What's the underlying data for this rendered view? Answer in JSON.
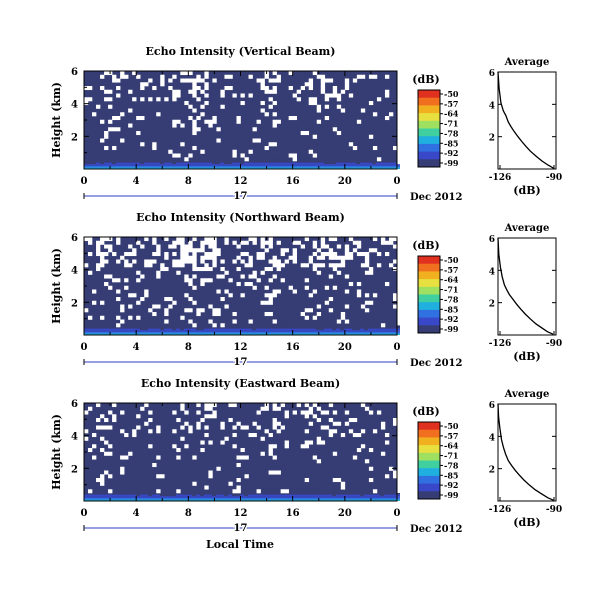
{
  "figure": {
    "x_title": "Local Time",
    "month_label": "Dec 2012",
    "day_label": "17",
    "unit_label": "(dB)",
    "average_title": "Average"
  },
  "chart_data": [
    {
      "type": "heatmap",
      "title": "Echo Intensity (Vertical Beam)",
      "xlabel": "",
      "ylabel": "Height (km)",
      "x_ticks": [
        "0",
        "4",
        "8",
        "12",
        "16",
        "20",
        "0"
      ],
      "xlim": [
        0,
        24
      ],
      "y_ticks": [
        "2",
        "4",
        "6"
      ],
      "ylim": [
        0,
        6
      ],
      "colorbar": {
        "label": "(dB)",
        "ticks": [
          "-50",
          "-57",
          "-64",
          "-71",
          "-78",
          "-85",
          "-92",
          "-99"
        ],
        "range": [
          -99,
          -50
        ]
      },
      "background_level_db": -99,
      "surface_layer_db": -88,
      "white_gap_fraction": 0.12,
      "colors": {
        "background": "#353d74",
        "gap": "#ffffff"
      }
    },
    {
      "type": "line",
      "title": "Average",
      "xlabel": "(dB)",
      "ylabel": "",
      "x_ticks": [
        "-126",
        "-90"
      ],
      "xlim": [
        -126,
        -90
      ],
      "y_ticks": [
        "2",
        "4",
        "6"
      ],
      "ylim": [
        0,
        6
      ],
      "x": [
        -126.0,
        -125.3,
        -124.2,
        -122.7,
        -121.1,
        -119.6,
        -117.8,
        -115.8,
        -113.6,
        -111.2,
        -108.6,
        -105.9,
        -102.4,
        -98.8,
        -95.0,
        -91.5
      ],
      "y": [
        6.0,
        5.0,
        4.1,
        3.6,
        3.3,
        2.9,
        2.6,
        2.3,
        2.0,
        1.7,
        1.4,
        1.1,
        0.8,
        0.5,
        0.25,
        0.05
      ]
    },
    {
      "type": "heatmap",
      "title": "Echo Intensity (Northward Beam)",
      "xlabel": "",
      "ylabel": "Height (km)",
      "x_ticks": [
        "0",
        "4",
        "8",
        "12",
        "16",
        "20",
        "0"
      ],
      "xlim": [
        0,
        24
      ],
      "y_ticks": [
        "2",
        "4",
        "6"
      ],
      "ylim": [
        0,
        6
      ],
      "colorbar": {
        "label": "(dB)",
        "ticks": [
          "-50",
          "-57",
          "-64",
          "-71",
          "-78",
          "-85",
          "-92",
          "-99"
        ],
        "range": [
          -99,
          -50
        ]
      },
      "background_level_db": -99,
      "surface_layer_db": -88,
      "white_gap_fraction": 0.2,
      "colors": {
        "background": "#353d74",
        "gap": "#ffffff"
      }
    },
    {
      "type": "line",
      "title": "Average",
      "xlabel": "(dB)",
      "ylabel": "",
      "x_ticks": [
        "-126",
        "-90"
      ],
      "xlim": [
        -126,
        -90
      ],
      "y_ticks": [
        "2",
        "4",
        "6"
      ],
      "ylim": [
        0,
        6
      ],
      "x": [
        -126.0,
        -125.5,
        -124.5,
        -123.4,
        -122.0,
        -120.6,
        -118.9,
        -116.7,
        -114.4,
        -111.9,
        -109.1,
        -106.0,
        -102.6,
        -99.0,
        -95.2,
        -91.8
      ],
      "y": [
        6.0,
        5.0,
        4.2,
        3.6,
        3.1,
        2.8,
        2.5,
        2.2,
        1.9,
        1.6,
        1.3,
        1.0,
        0.7,
        0.45,
        0.2,
        0.05
      ]
    },
    {
      "type": "heatmap",
      "title": "Echo Intensity (Eastward Beam)",
      "xlabel": "Local Time",
      "ylabel": "Height (km)",
      "x_ticks": [
        "0",
        "4",
        "8",
        "12",
        "16",
        "20",
        "0"
      ],
      "xlim": [
        0,
        24
      ],
      "y_ticks": [
        "2",
        "4",
        "6"
      ],
      "ylim": [
        0,
        6
      ],
      "colorbar": {
        "label": "(dB)",
        "ticks": [
          "-50",
          "-57",
          "-64",
          "-71",
          "-78",
          "-85",
          "-92",
          "-99"
        ],
        "range": [
          -99,
          -50
        ]
      },
      "background_level_db": -99,
      "surface_layer_db": -88,
      "white_gap_fraction": 0.1,
      "colors": {
        "background": "#353d74",
        "gap": "#ffffff"
      }
    },
    {
      "type": "line",
      "title": "Average",
      "xlabel": "(dB)",
      "ylabel": "",
      "x_ticks": [
        "-126",
        "-90"
      ],
      "xlim": [
        -126,
        -90
      ],
      "y_ticks": [
        "2",
        "4",
        "6"
      ],
      "ylim": [
        0,
        6
      ],
      "x": [
        -126.0,
        -125.6,
        -124.8,
        -123.8,
        -122.6,
        -121.3,
        -119.6,
        -117.6,
        -115.3,
        -112.8,
        -109.9,
        -106.7,
        -103.0,
        -99.1,
        -95.0,
        -91.6
      ],
      "y": [
        6.0,
        5.2,
        4.5,
        3.8,
        3.3,
        2.9,
        2.5,
        2.2,
        1.9,
        1.6,
        1.3,
        1.0,
        0.7,
        0.45,
        0.2,
        0.05
      ]
    }
  ]
}
